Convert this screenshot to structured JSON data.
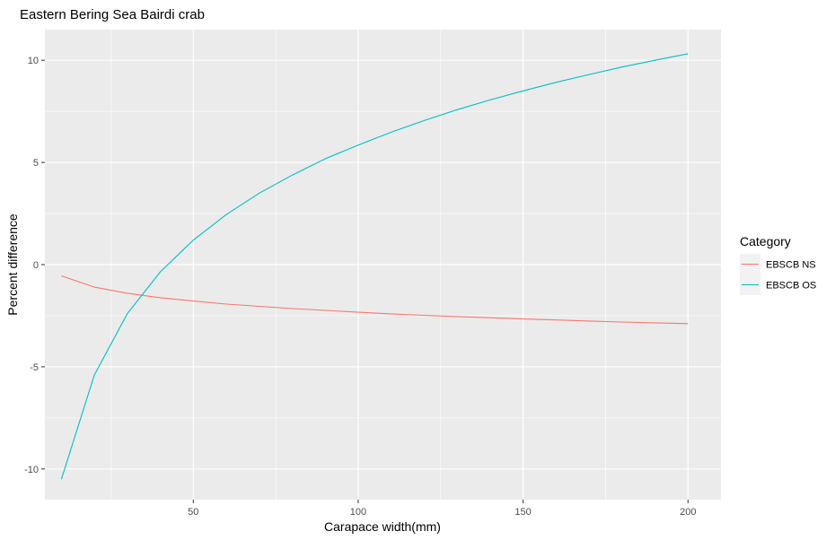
{
  "chart_data": {
    "type": "line",
    "title": "Eastern Bering Sea Bairdi crab",
    "xlabel": "Carapace width(mm)",
    "ylabel": "Percent difference",
    "xlim": [
      5,
      210
    ],
    "ylim": [
      -11.5,
      11.5
    ],
    "x_ticks": [
      50,
      100,
      150,
      200
    ],
    "x_minor": [
      25,
      75,
      125,
      175
    ],
    "y_ticks": [
      -10,
      -5,
      0,
      5,
      10
    ],
    "y_minor": [
      -7.5,
      -2.5,
      2.5,
      7.5
    ],
    "grid": true,
    "panel_background": "#ebebeb",
    "legend": {
      "title": "Category",
      "placement": "right"
    },
    "series": [
      {
        "name": "EBSCB NS",
        "color": "#F8766D",
        "x": [
          10,
          20,
          30,
          40,
          50,
          60,
          70,
          80,
          90,
          100,
          110,
          120,
          130,
          140,
          150,
          160,
          170,
          180,
          190,
          200
        ],
        "y": [
          -0.55,
          -1.1,
          -1.4,
          -1.62,
          -1.78,
          -1.93,
          -2.04,
          -2.15,
          -2.24,
          -2.33,
          -2.41,
          -2.48,
          -2.54,
          -2.6,
          -2.66,
          -2.71,
          -2.76,
          -2.81,
          -2.85,
          -2.89
        ]
      },
      {
        "name": "EBSCB OS",
        "color": "#00BFC4",
        "x": [
          10,
          20,
          30,
          40,
          50,
          60,
          70,
          80,
          90,
          100,
          110,
          120,
          130,
          140,
          150,
          160,
          170,
          180,
          190,
          200
        ],
        "y": [
          -10.5,
          -5.4,
          -2.4,
          -0.35,
          1.2,
          2.45,
          3.5,
          4.38,
          5.18,
          5.85,
          6.48,
          7.05,
          7.58,
          8.06,
          8.5,
          8.92,
          9.3,
          9.67,
          10.0,
          10.32
        ]
      }
    ]
  }
}
